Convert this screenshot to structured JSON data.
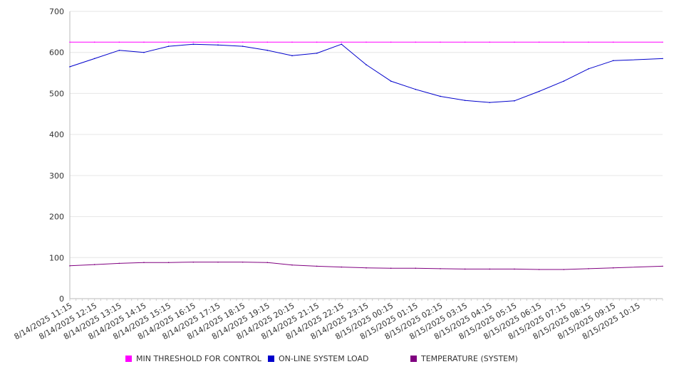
{
  "chart_data": {
    "type": "line",
    "title": "",
    "xlabel": "",
    "ylabel": "",
    "ylim": [
      0,
      700
    ],
    "yticks": [
      "0",
      "100",
      "200",
      "300",
      "400",
      "500",
      "600",
      "700"
    ],
    "categories": [
      "8/14/2025 11:15",
      "8/14/2025 12:15",
      "8/14/2025 13:15",
      "8/14/2025 14:15",
      "8/14/2025 15:15",
      "8/14/2025 16:15",
      "8/14/2025 17:15",
      "8/14/2025 18:15",
      "8/14/2025 19:15",
      "8/14/2025 20:15",
      "8/14/2025 21:15",
      "8/14/2025 22:15",
      "8/14/2025 23:15",
      "8/15/2025 00:15",
      "8/15/2025 01:15",
      "8/15/2025 02:15",
      "8/15/2025 03:15",
      "8/15/2025 04:15",
      "8/15/2025 05:15",
      "8/15/2025 06:15",
      "8/15/2025 07:15",
      "8/15/2025 08:15",
      "8/15/2025 09:15",
      "8/15/2025 10:15"
    ],
    "grid": true,
    "legend_position": "bottom",
    "series": [
      {
        "name": "MIN THRESHOLD FOR CONTROL",
        "color": "#ff00ff",
        "values": [
          625,
          625,
          625,
          625,
          625,
          625,
          625,
          625,
          625,
          625,
          625,
          625,
          625,
          625,
          625,
          625,
          625,
          625,
          625,
          625,
          625,
          625,
          625,
          625
        ]
      },
      {
        "name": "ON-LINE SYSTEM LOAD",
        "color": "#0000cc",
        "values": [
          565,
          585,
          605,
          600,
          615,
          620,
          618,
          615,
          605,
          592,
          598,
          620,
          570,
          530,
          510,
          493,
          483,
          478,
          482,
          505,
          530,
          560,
          580,
          585
        ]
      },
      {
        "name": "TEMPERATURE (SYSTEM)",
        "color": "#800080",
        "values": [
          80,
          83,
          86,
          88,
          88,
          89,
          89,
          89,
          88,
          82,
          79,
          77,
          75,
          74,
          74,
          73,
          72,
          72,
          72,
          71,
          71,
          73,
          75,
          79
        ]
      }
    ]
  }
}
